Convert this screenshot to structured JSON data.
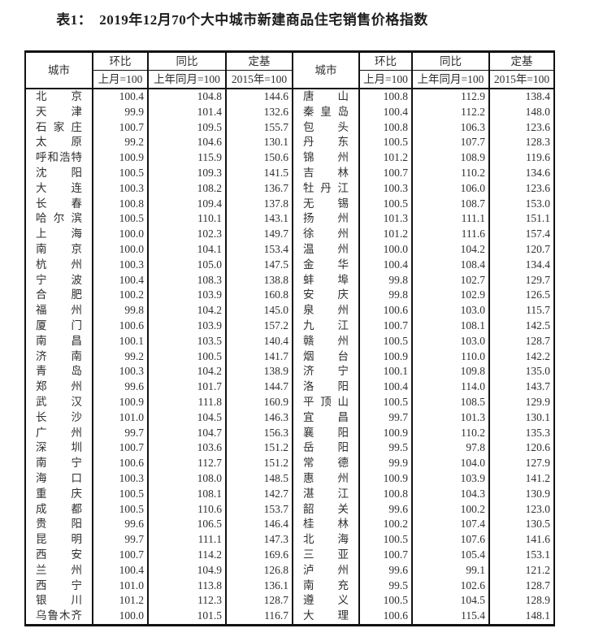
{
  "title": "表1：　2019年12月70个大中城市新建商品住宅销售价格指数",
  "table": {
    "header": {
      "city": "城市",
      "mom": "环比",
      "mom_base": "上月=100",
      "yoy": "同比",
      "yoy_base": "上年同月=100",
      "fixed": "定基",
      "fixed_base": "2015年=100"
    },
    "left_rows": [
      {
        "city": "北京",
        "mom": "100.4",
        "yoy": "104.8",
        "fixed": "144.6"
      },
      {
        "city": "天津",
        "mom": "99.9",
        "yoy": "101.4",
        "fixed": "132.6"
      },
      {
        "city": "石家庄",
        "mom": "100.7",
        "yoy": "109.5",
        "fixed": "155.7"
      },
      {
        "city": "太原",
        "mom": "99.2",
        "yoy": "104.6",
        "fixed": "130.1"
      },
      {
        "city": "呼和浩特",
        "mom": "100.9",
        "yoy": "115.9",
        "fixed": "150.6"
      },
      {
        "city": "沈阳",
        "mom": "100.5",
        "yoy": "109.3",
        "fixed": "141.5"
      },
      {
        "city": "大连",
        "mom": "100.3",
        "yoy": "108.2",
        "fixed": "136.7"
      },
      {
        "city": "长春",
        "mom": "100.8",
        "yoy": "109.4",
        "fixed": "137.8"
      },
      {
        "city": "哈尔滨",
        "mom": "100.5",
        "yoy": "110.1",
        "fixed": "143.1"
      },
      {
        "city": "上海",
        "mom": "100.0",
        "yoy": "102.3",
        "fixed": "149.7"
      },
      {
        "city": "南京",
        "mom": "100.0",
        "yoy": "104.1",
        "fixed": "153.4"
      },
      {
        "city": "杭州",
        "mom": "100.3",
        "yoy": "105.0",
        "fixed": "147.5"
      },
      {
        "city": "宁波",
        "mom": "100.4",
        "yoy": "108.3",
        "fixed": "138.8"
      },
      {
        "city": "合肥",
        "mom": "100.2",
        "yoy": "103.9",
        "fixed": "160.8"
      },
      {
        "city": "福州",
        "mom": "99.8",
        "yoy": "104.2",
        "fixed": "145.0"
      },
      {
        "city": "厦门",
        "mom": "100.6",
        "yoy": "103.9",
        "fixed": "157.2"
      },
      {
        "city": "南昌",
        "mom": "100.1",
        "yoy": "103.5",
        "fixed": "140.4"
      },
      {
        "city": "济南",
        "mom": "99.2",
        "yoy": "100.5",
        "fixed": "141.7"
      },
      {
        "city": "青岛",
        "mom": "100.3",
        "yoy": "104.2",
        "fixed": "138.9"
      },
      {
        "city": "郑州",
        "mom": "99.6",
        "yoy": "101.7",
        "fixed": "144.7"
      },
      {
        "city": "武汉",
        "mom": "100.9",
        "yoy": "111.8",
        "fixed": "160.9"
      },
      {
        "city": "长沙",
        "mom": "101.0",
        "yoy": "104.5",
        "fixed": "146.3"
      },
      {
        "city": "广州",
        "mom": "99.7",
        "yoy": "104.7",
        "fixed": "156.3"
      },
      {
        "city": "深圳",
        "mom": "100.7",
        "yoy": "103.6",
        "fixed": "151.2"
      },
      {
        "city": "南宁",
        "mom": "100.6",
        "yoy": "112.7",
        "fixed": "151.2"
      },
      {
        "city": "海口",
        "mom": "100.3",
        "yoy": "108.0",
        "fixed": "148.5"
      },
      {
        "city": "重庆",
        "mom": "100.5",
        "yoy": "108.1",
        "fixed": "142.7"
      },
      {
        "city": "成都",
        "mom": "100.5",
        "yoy": "110.6",
        "fixed": "153.7"
      },
      {
        "city": "贵阳",
        "mom": "99.6",
        "yoy": "106.5",
        "fixed": "146.4"
      },
      {
        "city": "昆明",
        "mom": "99.7",
        "yoy": "111.1",
        "fixed": "147.3"
      },
      {
        "city": "西安",
        "mom": "100.7",
        "yoy": "114.2",
        "fixed": "169.6"
      },
      {
        "city": "兰州",
        "mom": "100.4",
        "yoy": "104.9",
        "fixed": "126.8"
      },
      {
        "city": "西宁",
        "mom": "101.0",
        "yoy": "113.8",
        "fixed": "136.1"
      },
      {
        "city": "银川",
        "mom": "101.2",
        "yoy": "112.3",
        "fixed": "128.7"
      },
      {
        "city": "乌鲁木齐",
        "mom": "100.0",
        "yoy": "101.5",
        "fixed": "116.7"
      }
    ],
    "right_rows": [
      {
        "city": "唐山",
        "mom": "100.8",
        "yoy": "112.9",
        "fixed": "138.4"
      },
      {
        "city": "秦皇岛",
        "mom": "100.4",
        "yoy": "112.2",
        "fixed": "148.0"
      },
      {
        "city": "包头",
        "mom": "100.8",
        "yoy": "106.3",
        "fixed": "123.6"
      },
      {
        "city": "丹东",
        "mom": "100.5",
        "yoy": "107.7",
        "fixed": "128.3"
      },
      {
        "city": "锦州",
        "mom": "101.2",
        "yoy": "108.9",
        "fixed": "119.6"
      },
      {
        "city": "吉林",
        "mom": "100.7",
        "yoy": "110.2",
        "fixed": "134.6"
      },
      {
        "city": "牡丹江",
        "mom": "100.3",
        "yoy": "106.0",
        "fixed": "123.6"
      },
      {
        "city": "无锡",
        "mom": "100.5",
        "yoy": "108.7",
        "fixed": "153.0"
      },
      {
        "city": "扬州",
        "mom": "101.3",
        "yoy": "111.1",
        "fixed": "151.1"
      },
      {
        "city": "徐州",
        "mom": "101.2",
        "yoy": "111.6",
        "fixed": "157.4"
      },
      {
        "city": "温州",
        "mom": "100.0",
        "yoy": "104.2",
        "fixed": "120.7"
      },
      {
        "city": "金华",
        "mom": "100.4",
        "yoy": "108.4",
        "fixed": "134.4"
      },
      {
        "city": "蚌埠",
        "mom": "99.8",
        "yoy": "102.7",
        "fixed": "129.7"
      },
      {
        "city": "安庆",
        "mom": "99.8",
        "yoy": "102.9",
        "fixed": "126.5"
      },
      {
        "city": "泉州",
        "mom": "100.6",
        "yoy": "103.0",
        "fixed": "115.7"
      },
      {
        "city": "九江",
        "mom": "100.7",
        "yoy": "108.1",
        "fixed": "142.5"
      },
      {
        "city": "赣州",
        "mom": "100.5",
        "yoy": "103.0",
        "fixed": "128.7"
      },
      {
        "city": "烟台",
        "mom": "100.9",
        "yoy": "110.0",
        "fixed": "142.2"
      },
      {
        "city": "济宁",
        "mom": "100.1",
        "yoy": "109.8",
        "fixed": "135.0"
      },
      {
        "city": "洛阳",
        "mom": "100.4",
        "yoy": "114.0",
        "fixed": "143.7"
      },
      {
        "city": "平顶山",
        "mom": "100.5",
        "yoy": "108.5",
        "fixed": "129.9"
      },
      {
        "city": "宜昌",
        "mom": "99.7",
        "yoy": "101.3",
        "fixed": "130.1"
      },
      {
        "city": "襄阳",
        "mom": "100.9",
        "yoy": "110.2",
        "fixed": "135.3"
      },
      {
        "city": "岳阳",
        "mom": "99.5",
        "yoy": "97.8",
        "fixed": "120.6"
      },
      {
        "city": "常德",
        "mom": "99.9",
        "yoy": "104.0",
        "fixed": "127.9"
      },
      {
        "city": "惠州",
        "mom": "100.9",
        "yoy": "103.9",
        "fixed": "141.2"
      },
      {
        "city": "湛江",
        "mom": "100.8",
        "yoy": "104.3",
        "fixed": "130.9"
      },
      {
        "city": "韶关",
        "mom": "99.6",
        "yoy": "100.2",
        "fixed": "123.0"
      },
      {
        "city": "桂林",
        "mom": "100.2",
        "yoy": "107.4",
        "fixed": "130.5"
      },
      {
        "city": "北海",
        "mom": "100.5",
        "yoy": "107.6",
        "fixed": "141.6"
      },
      {
        "city": "三亚",
        "mom": "100.7",
        "yoy": "105.4",
        "fixed": "153.1"
      },
      {
        "city": "泸州",
        "mom": "99.6",
        "yoy": "99.1",
        "fixed": "121.2"
      },
      {
        "city": "南充",
        "mom": "99.5",
        "yoy": "102.6",
        "fixed": "128.7"
      },
      {
        "city": "遵义",
        "mom": "100.5",
        "yoy": "104.5",
        "fixed": "128.9"
      },
      {
        "city": "大理",
        "mom": "100.6",
        "yoy": "115.4",
        "fixed": "148.1"
      }
    ]
  }
}
